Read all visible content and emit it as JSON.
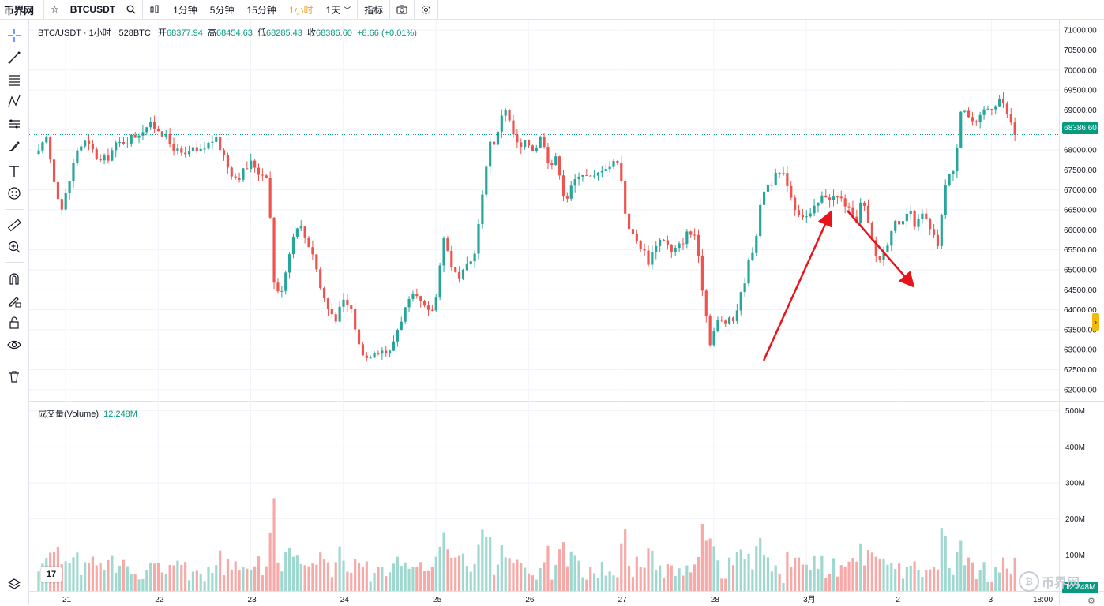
{
  "topbar": {
    "logo": "币界网",
    "symbol": "BTCUSDT",
    "intervals": [
      "1分钟",
      "5分钟",
      "15分钟",
      "1小时",
      "1天"
    ],
    "active_interval": "1小时",
    "indicators_label": "指标"
  },
  "legend": {
    "title": "BTC/USDT · 1小时 · 528BTC",
    "open_label": "开",
    "open": "68377.94",
    "high_label": "高",
    "high": "68454.63",
    "low_label": "低",
    "low": "68285.43",
    "close_label": "收",
    "close": "68386.60",
    "change": "+8.66 (+0.01%)"
  },
  "volume_legend": {
    "label": "成交量(Volume)",
    "value": "12.248M"
  },
  "last_price_tag": "68386.60",
  "last_volume_tag": "12.248M",
  "time_label": "18:00",
  "watermark": "币界网",
  "colors": {
    "up": "#26a69a",
    "down": "#ef5350",
    "up_vol": "#9fd8cf",
    "down_vol": "#f7a9a7",
    "arrow": "#e8141c",
    "price_line": "#089981"
  },
  "tools": [
    "crosshair-icon",
    "trend-line-icon",
    "fib-icon",
    "pattern-icon",
    "projection-icon",
    "brush-icon",
    "text-icon",
    "emoji-icon",
    "ruler-icon",
    "zoom-in-icon",
    "magnet-icon",
    "lock-draw-icon",
    "lock-icon",
    "eye-icon",
    "trash-icon"
  ],
  "chart_data": {
    "type": "candlestick",
    "price_ticks": [
      62000,
      62500,
      63000,
      63500,
      64000,
      64500,
      65000,
      65500,
      66000,
      66500,
      67000,
      67500,
      68000,
      68500,
      69000,
      69500,
      70000,
      70500,
      71000
    ],
    "price_tick_labels": [
      "62000.00",
      "62500.00",
      "63000.00",
      "63500.00",
      "64000.00",
      "64500.00",
      "65000.00",
      "65500.00",
      "66000.00",
      "66500.00",
      "67000.00",
      "67500.00",
      "68000.00",
      "68500.00",
      "69000.00",
      "69500.00",
      "70000.00",
      "70500.00",
      "71000.00"
    ],
    "ylim": [
      61800,
      71200
    ],
    "volume_ticks": [
      "100M",
      "200M",
      "300M",
      "400M",
      "500M"
    ],
    "volume_tick_values": [
      100,
      200,
      300,
      400,
      500
    ],
    "volume_ylim": [
      0,
      510
    ],
    "x_labels": [
      "21",
      "22",
      "23",
      "24",
      "25",
      "26",
      "27",
      "28",
      "3月",
      "2",
      "3"
    ],
    "days": [
      {
        "label": "21",
        "path": [
          67900,
          68300,
          67300,
          66500,
          67200,
          68000,
          68200,
          68000,
          67700,
          67800,
          68100,
          68200,
          68300,
          68400,
          68600
        ]
      },
      {
        "label": "22",
        "path": [
          68600,
          68500,
          68200,
          68000,
          67800,
          68000,
          67900,
          68100,
          68300,
          68000,
          67500,
          67300,
          67500,
          67700,
          67400
        ]
      },
      {
        "label": "23",
        "path": [
          67400,
          64300,
          64600,
          65600,
          66200,
          65800,
          65400,
          64500,
          64000,
          63800,
          64200,
          64000,
          63100,
          62800,
          63000
        ]
      },
      {
        "label": "24",
        "path": [
          63000,
          62900,
          63500,
          64000,
          64300,
          64200,
          63900,
          64100,
          65900,
          65200,
          64700,
          65000,
          65300,
          66500,
          68200
        ]
      },
      {
        "label": "25",
        "path": [
          68200,
          69200,
          68500,
          68000,
          68200,
          68000,
          68400,
          67600,
          67800,
          66700,
          67100,
          67500,
          67300,
          67300,
          67600
        ]
      },
      {
        "label": "26",
        "path": [
          67600,
          67800,
          66300,
          65800,
          65600,
          65200,
          65700,
          65800,
          65400,
          65600,
          65900,
          65900,
          64600,
          63200,
          63700
        ]
      },
      {
        "label": "27",
        "path": [
          63700,
          63700,
          64300,
          65100,
          65800,
          67000,
          67200,
          67400,
          67300,
          66600,
          66400,
          66300,
          66600,
          66900,
          66800
        ]
      },
      {
        "label": "28",
        "path": [
          66800,
          66600,
          66100,
          66800,
          65900,
          65200,
          65500,
          66200,
          66000,
          66500,
          66100,
          66400,
          65900,
          65600,
          67400
        ]
      },
      {
        "label": "3月",
        "path": [
          67400,
          69200,
          68800,
          68600,
          69000,
          69100,
          69300,
          68900,
          68400
        ]
      },
      {
        "label": "2",
        "path": []
      },
      {
        "label": "3",
        "path": []
      }
    ]
  }
}
